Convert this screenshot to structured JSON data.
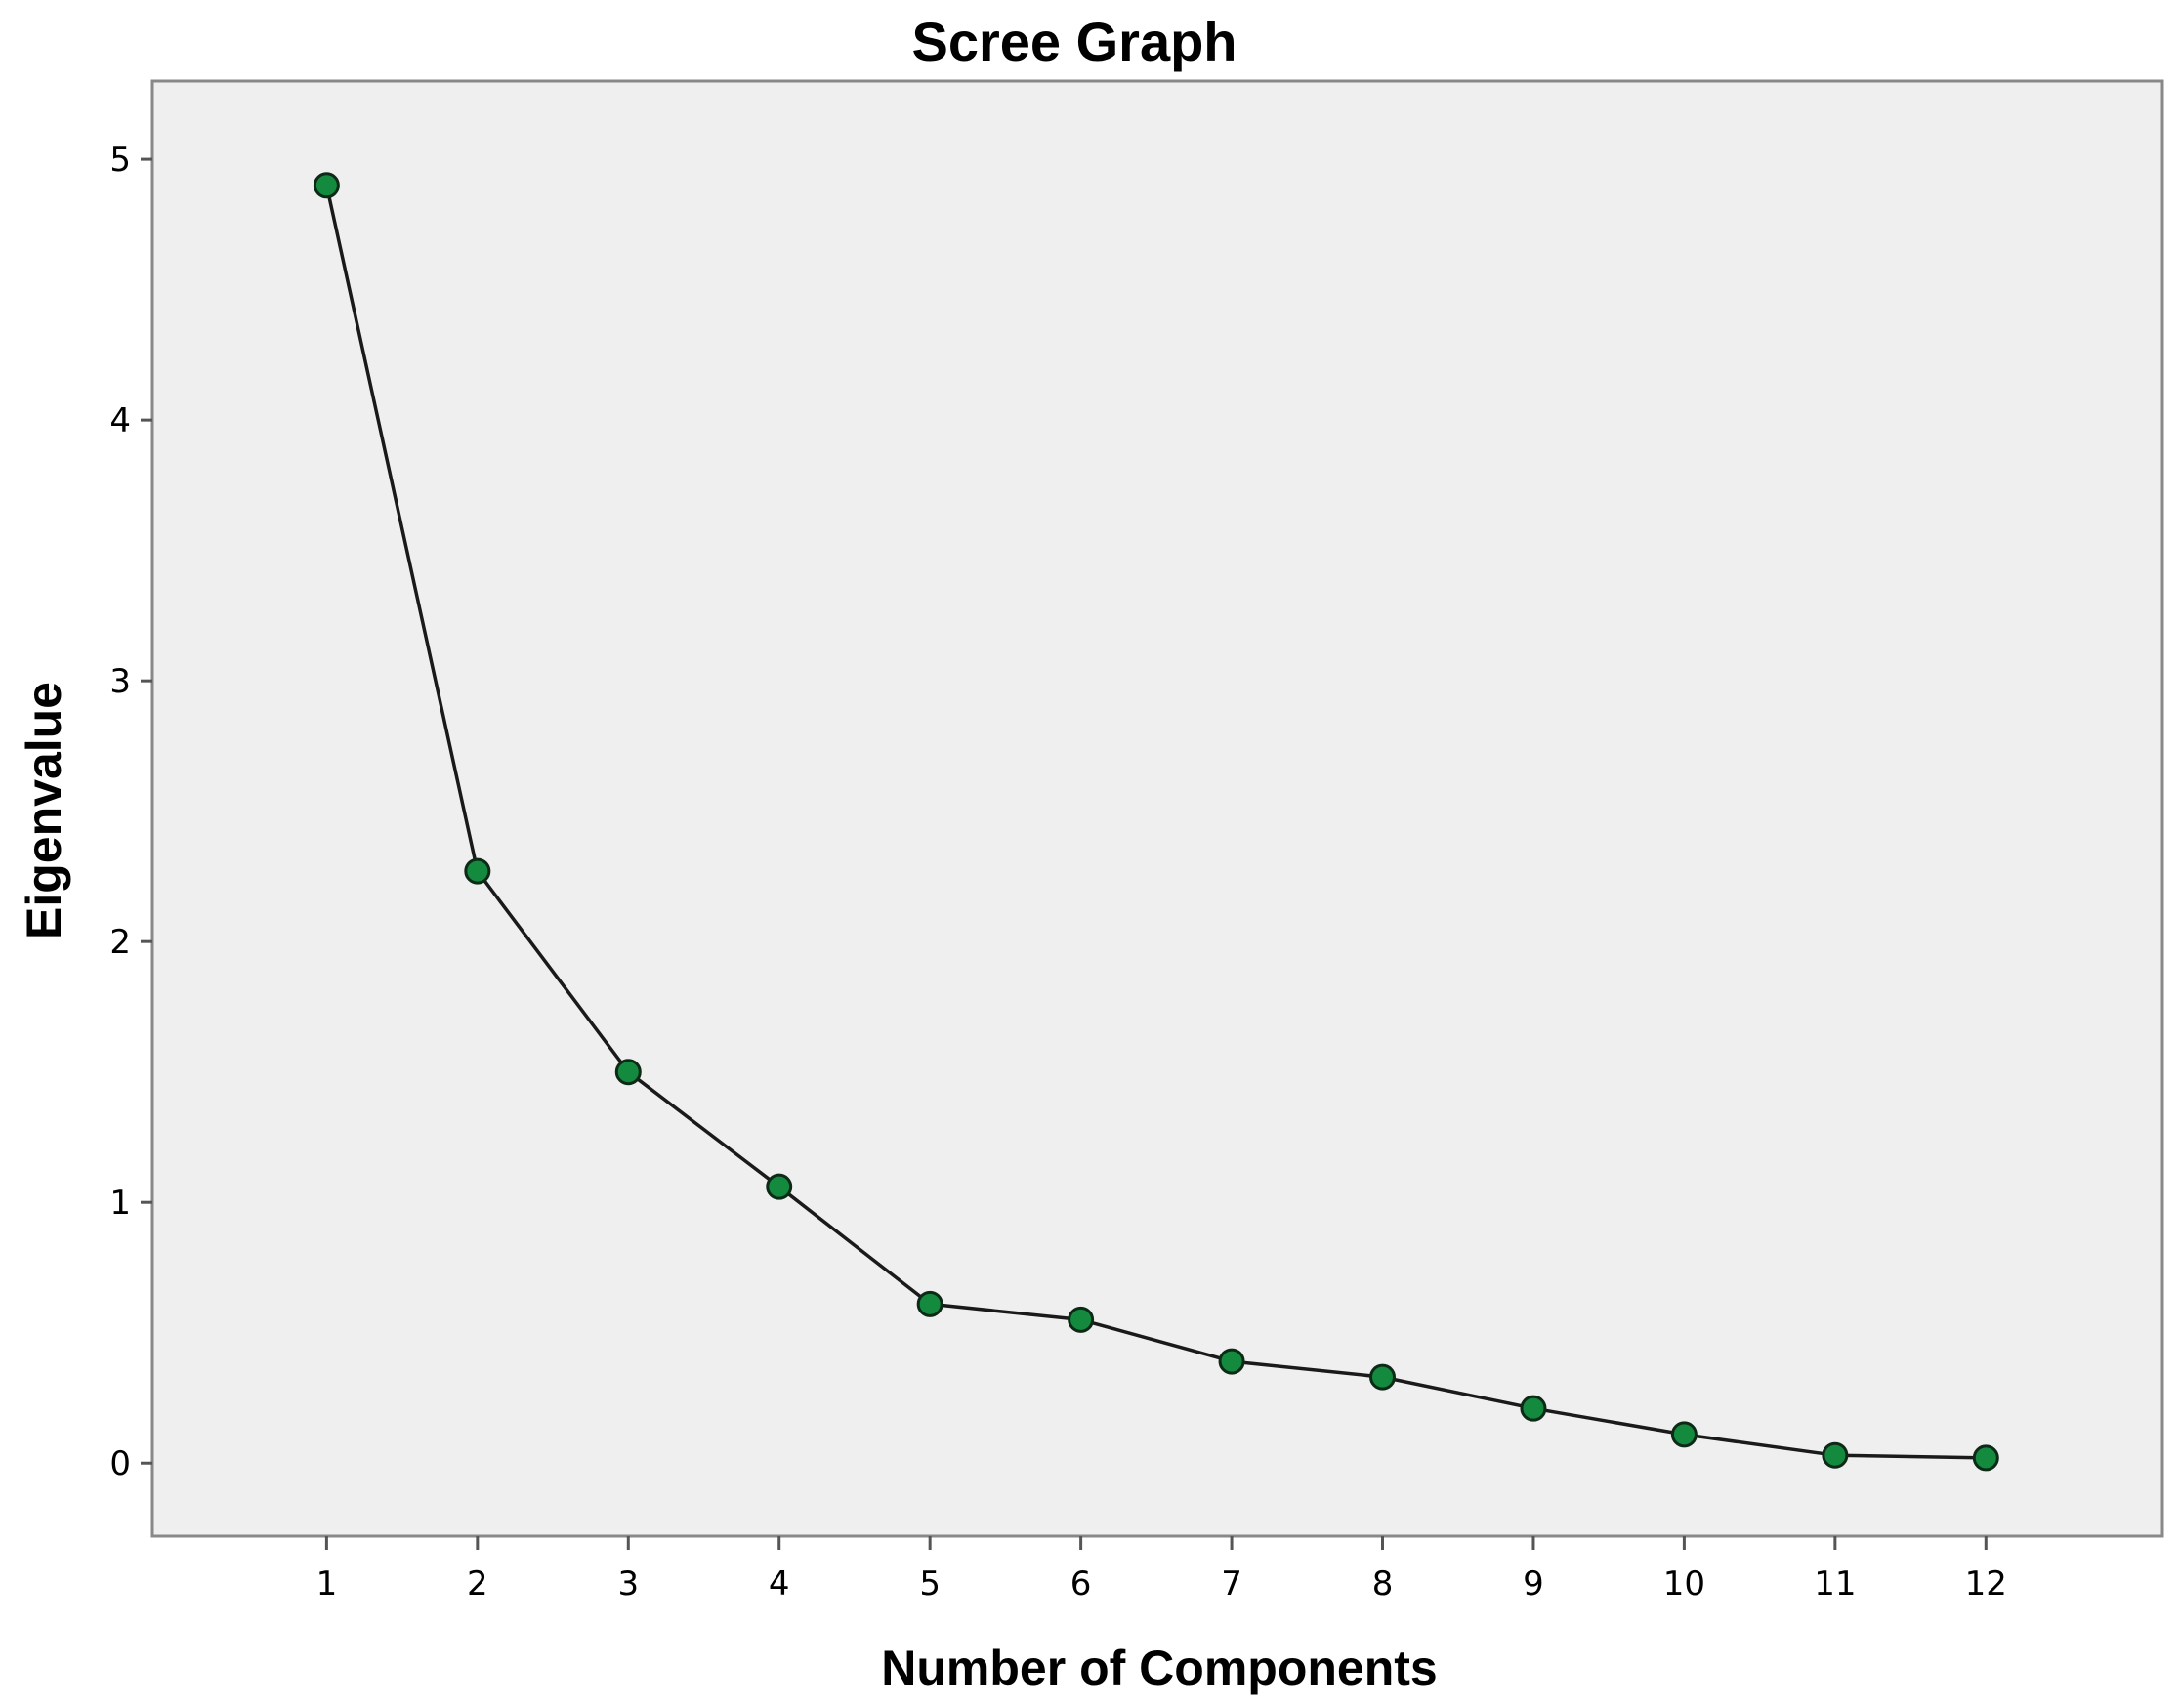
{
  "chart_data": {
    "type": "line",
    "title": "Scree Graph",
    "xlabel": "Number of Components",
    "ylabel": "Eigenvalue",
    "x": [
      1,
      2,
      3,
      4,
      5,
      6,
      7,
      8,
      9,
      10,
      11,
      12
    ],
    "series": [
      {
        "values": [
          4.9,
          2.27,
          1.5,
          1.06,
          0.61,
          0.55,
          0.39,
          0.33,
          0.21,
          0.11,
          0.03,
          0.02
        ]
      }
    ],
    "xticks": [
      "1",
      "2",
      "3",
      "4",
      "5",
      "6",
      "7",
      "8",
      "9",
      "10",
      "11",
      "12"
    ],
    "yticks": [
      "0",
      "1",
      "2",
      "3",
      "4",
      "5"
    ],
    "xlim": [
      -0.155,
      13.17
    ],
    "ylim": [
      -0.28,
      5.3
    ],
    "grid": false,
    "colors": {
      "plot_background": "#efefef",
      "marker_fill": "#138a3e",
      "line": "#1a1a1a",
      "frame": "#888888"
    }
  }
}
